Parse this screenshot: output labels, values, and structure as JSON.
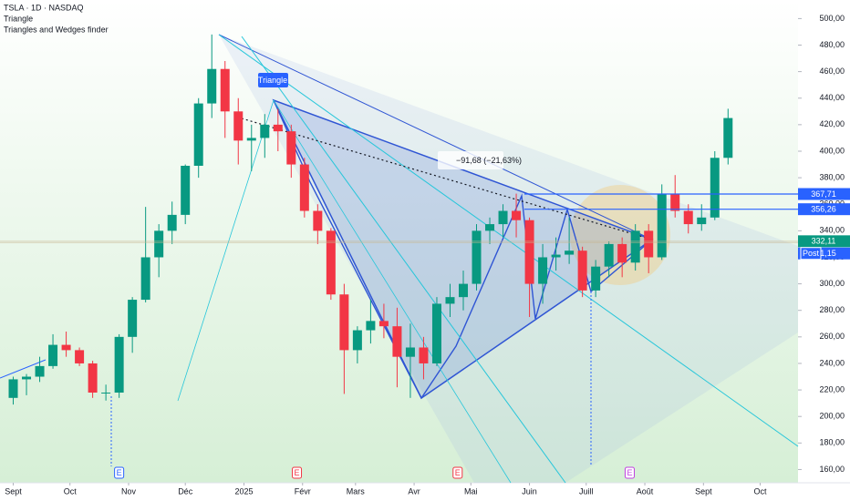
{
  "chart_data": {
    "type": "candlestick",
    "header": [
      "TSLA · 1D · NASDAQ",
      "Triangle",
      "Triangles and Wedges finder"
    ],
    "x": [
      0,
      7,
      14,
      21,
      28,
      35,
      42,
      49,
      56,
      63,
      70,
      77,
      84,
      91,
      98,
      105,
      112,
      119,
      126,
      133,
      140,
      147,
      154,
      161,
      168,
      175,
      182,
      189,
      196,
      203,
      210,
      217,
      224,
      231,
      238,
      245,
      252,
      259,
      266,
      273,
      280,
      287,
      294,
      301,
      308,
      315,
      322,
      329,
      336,
      343,
      350,
      357,
      364,
      371,
      378
    ],
    "open": [
      214,
      228,
      230,
      238,
      254,
      250,
      240,
      218,
      218,
      260,
      288,
      320,
      340,
      352,
      389,
      436,
      462,
      430,
      408,
      410,
      420,
      415,
      390,
      355,
      340,
      292,
      250,
      265,
      272,
      268,
      245,
      252,
      240,
      285,
      290,
      300,
      340,
      345,
      355,
      348,
      300,
      320,
      322,
      325,
      295,
      313,
      330,
      316,
      340,
      320,
      368,
      355,
      345,
      350,
      395
    ],
    "high": [
      230,
      232,
      245,
      262,
      264,
      252,
      242,
      224,
      262,
      290,
      358,
      345,
      362,
      390,
      440,
      488,
      468,
      440,
      420,
      428,
      432,
      420,
      395,
      360,
      342,
      300,
      268,
      288,
      285,
      282,
      270,
      260,
      290,
      300,
      310,
      345,
      350,
      360,
      368,
      350,
      330,
      335,
      350,
      328,
      318,
      332,
      335,
      345,
      345,
      375,
      382,
      360,
      360,
      400,
      432
    ],
    "low": [
      209,
      216,
      226,
      236,
      245,
      238,
      214,
      212,
      214,
      248,
      286,
      305,
      330,
      345,
      380,
      425,
      410,
      390,
      385,
      395,
      400,
      380,
      350,
      330,
      288,
      217,
      240,
      255,
      259,
      222,
      214,
      228,
      238,
      275,
      280,
      295,
      330,
      335,
      335,
      275,
      285,
      310,
      315,
      290,
      290,
      305,
      305,
      310,
      308,
      318,
      350,
      338,
      340,
      348,
      390
    ],
    "close": [
      228,
      230,
      238,
      254,
      250,
      240,
      218,
      218,
      260,
      288,
      320,
      340,
      352,
      389,
      436,
      462,
      430,
      408,
      410,
      420,
      415,
      390,
      355,
      340,
      292,
      250,
      265,
      272,
      268,
      245,
      252,
      240,
      285,
      290,
      300,
      340,
      345,
      355,
      348,
      300,
      320,
      322,
      325,
      295,
      313,
      330,
      316,
      340,
      320,
      368,
      355,
      345,
      350,
      395,
      425
    ],
    "up_color": "#089981",
    "down_color": "#f23645",
    "xlim": [
      -7,
      415
    ],
    "ylim": [
      150,
      514
    ],
    "xticks": [
      {
        "value": 0,
        "label": "Sept"
      },
      {
        "value": 30,
        "label": "Oct"
      },
      {
        "value": 61,
        "label": "Nov"
      },
      {
        "value": 91,
        "label": "Déc"
      },
      {
        "value": 122,
        "label": "2025"
      },
      {
        "value": 153,
        "label": "Févr"
      },
      {
        "value": 181,
        "label": "Mars"
      },
      {
        "value": 212,
        "label": "Avr"
      },
      {
        "value": 242,
        "label": "Mai"
      },
      {
        "value": 273,
        "label": "Juin"
      },
      {
        "value": 303,
        "label": "Juill"
      },
      {
        "value": 334,
        "label": "Août"
      },
      {
        "value": 365,
        "label": "Sept"
      },
      {
        "value": 395,
        "label": "Oct"
      }
    ],
    "yticks": [
      {
        "value": 160,
        "label": "160,00"
      },
      {
        "value": 180,
        "label": "180,00"
      },
      {
        "value": 200,
        "label": "200,00"
      },
      {
        "value": 220,
        "label": "220,00"
      },
      {
        "value": 240,
        "label": "240,00"
      },
      {
        "value": 260,
        "label": "260,00"
      },
      {
        "value": 280,
        "label": "280,00"
      },
      {
        "value": 300,
        "label": "300,00"
      },
      {
        "value": 320,
        "label": "320,00"
      },
      {
        "value": 340,
        "label": "340,00"
      },
      {
        "value": 360,
        "label": "360,00"
      },
      {
        "value": 380,
        "label": "380,00"
      },
      {
        "value": 400,
        "label": "400,00"
      },
      {
        "value": 420,
        "label": "420,00"
      },
      {
        "value": 440,
        "label": "440,00"
      },
      {
        "value": 460,
        "label": "460,00"
      },
      {
        "value": 480,
        "label": "480,00"
      },
      {
        "value": 500,
        "label": "500,00"
      }
    ],
    "price_lines": [
      {
        "value": 367.71,
        "label": "367,71",
        "color": "#2962ff"
      },
      {
        "value": 356.26,
        "label": "356,26",
        "color": "#2962ff"
      },
      {
        "value": 332.11,
        "label": "332,11",
        "color": "#089981"
      },
      {
        "value": 331.15,
        "label": "331,15",
        "color": "#2962ff",
        "tag": "Post"
      }
    ],
    "annotations": [
      "Triangle",
      "−91,68 (−21,63%)"
    ],
    "events": [
      {
        "x": 56,
        "label": "E"
      },
      {
        "x": 150,
        "label": "E"
      },
      {
        "x": 235,
        "label": "E"
      },
      {
        "x": 326,
        "label": "E"
      }
    ]
  }
}
